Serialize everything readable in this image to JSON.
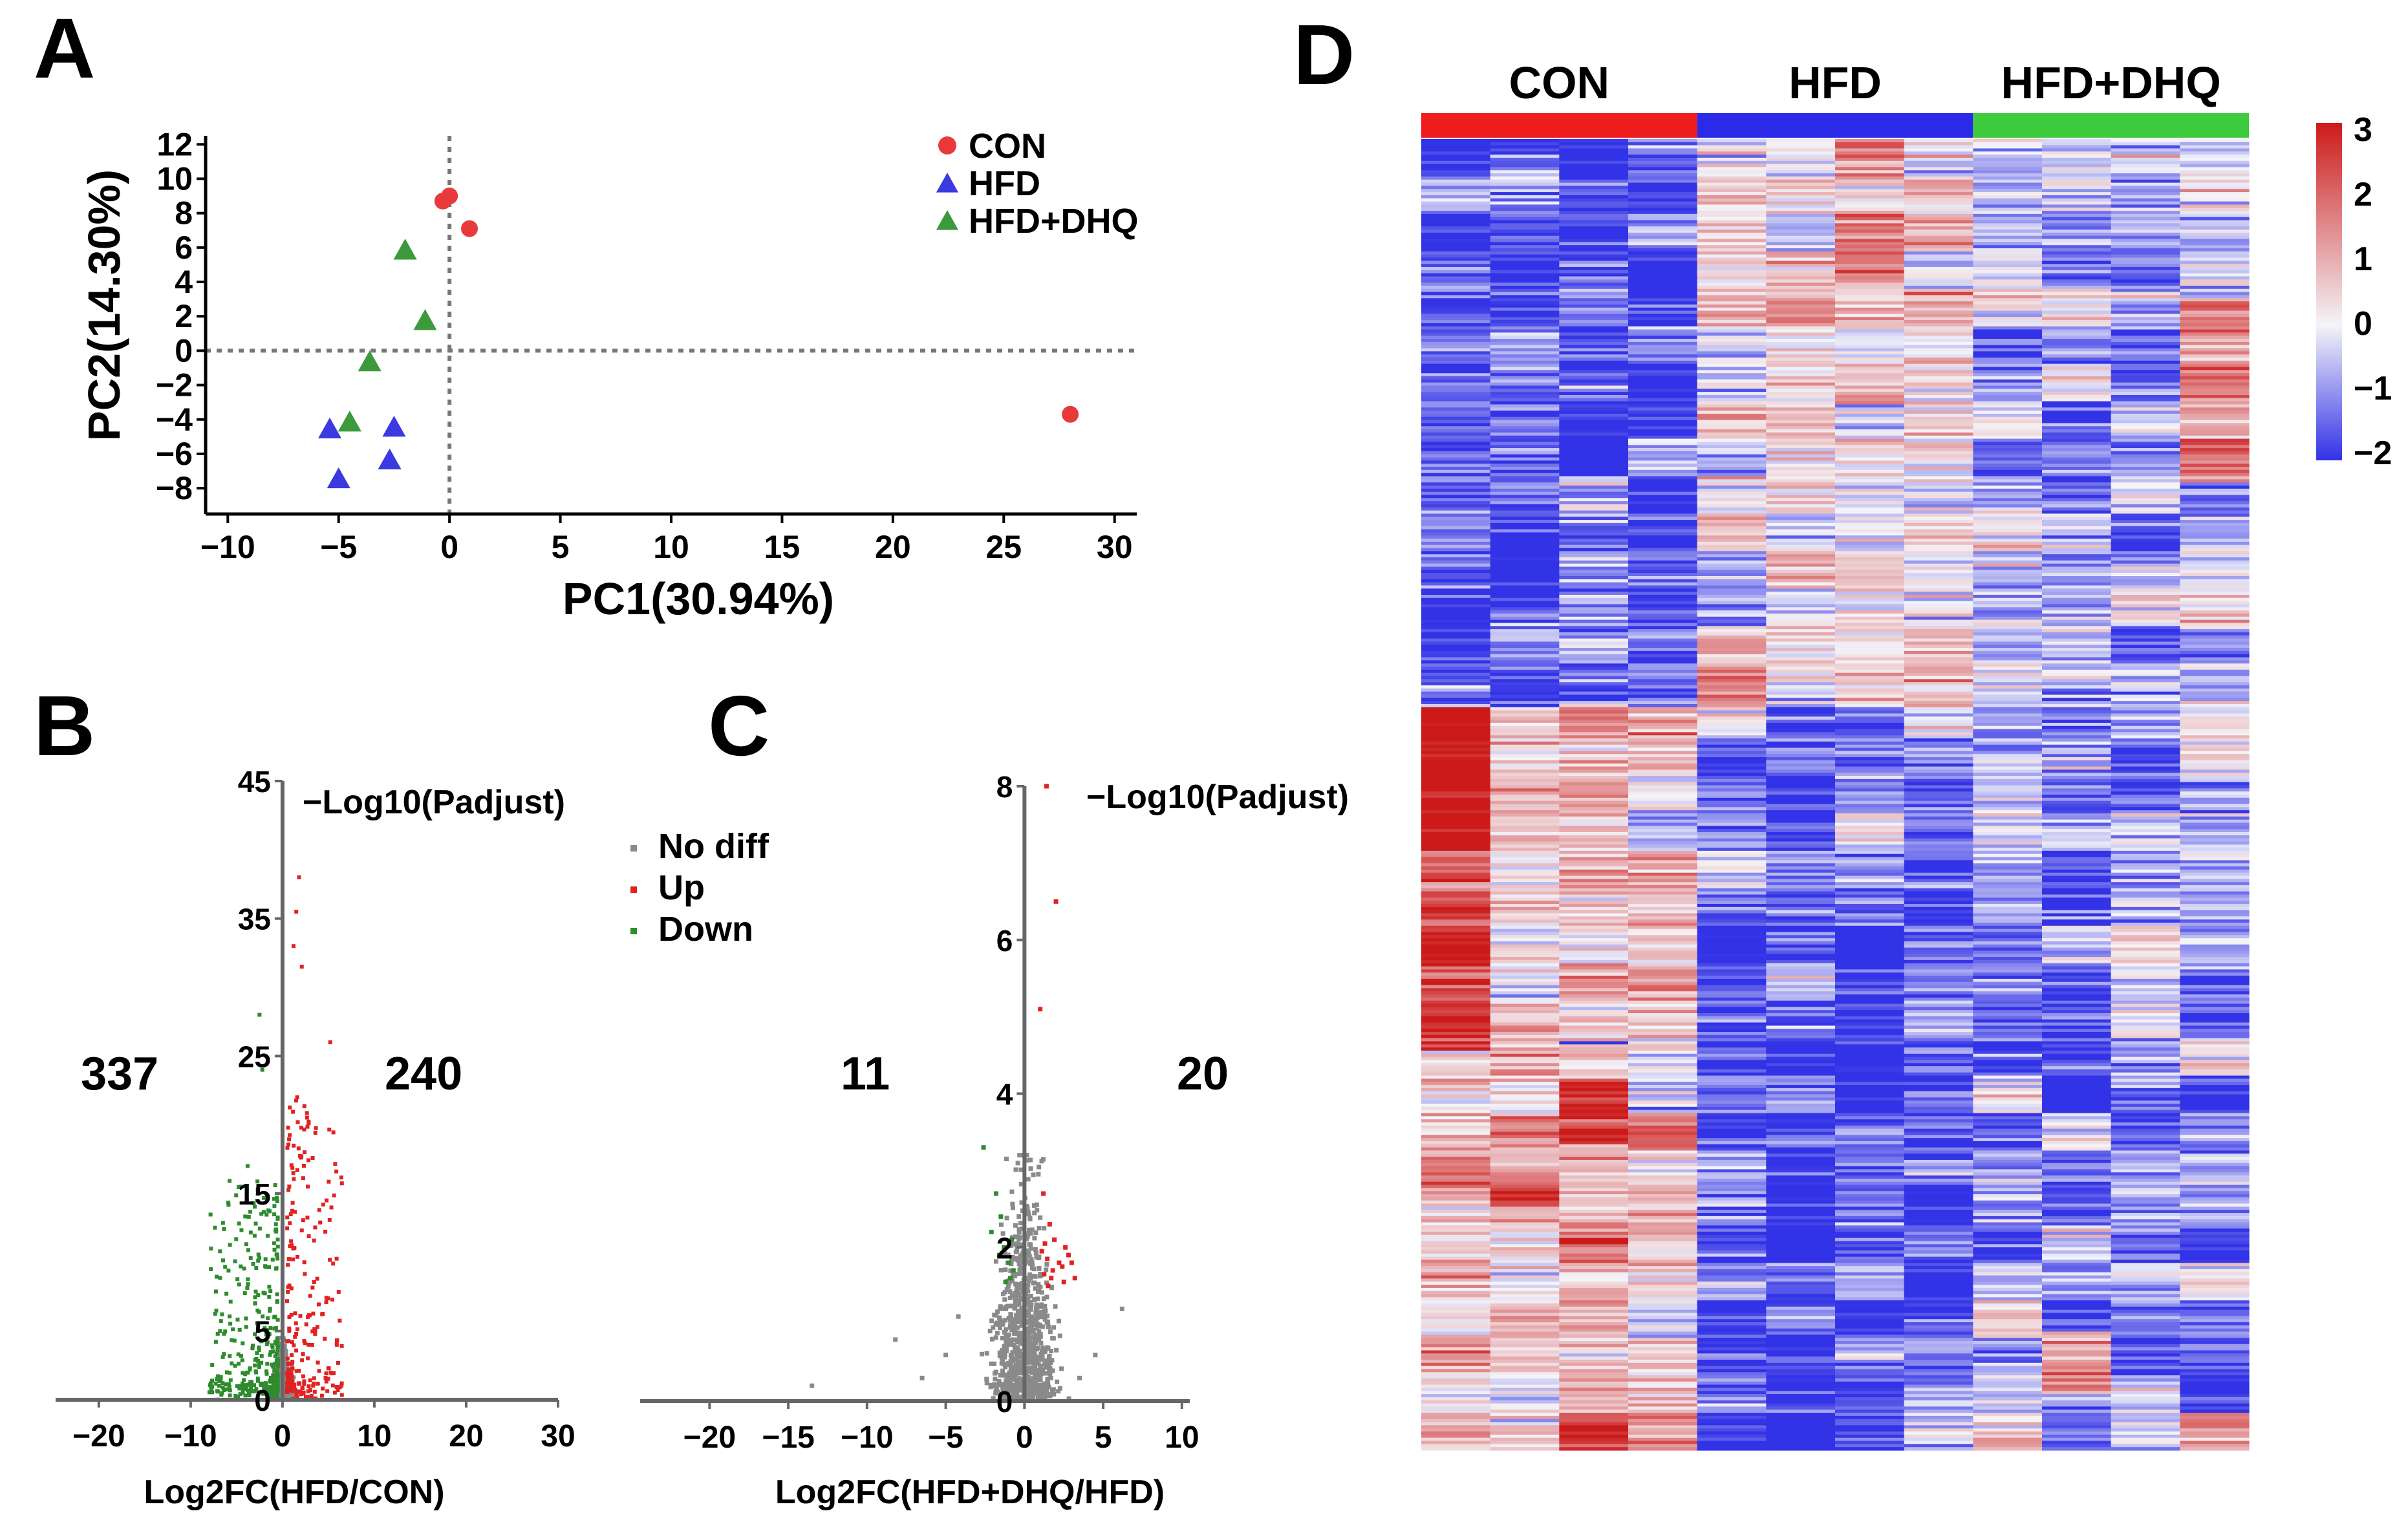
{
  "panels": {
    "A": "A",
    "B": "B",
    "C": "C",
    "D": "D"
  },
  "chart_data": [
    {
      "panel": "A",
      "type": "scatter",
      "xlabel": "PC1(30.94%)",
      "ylabel": "PC2(14.30%)",
      "xlim": [
        -11,
        31
      ],
      "ylim": [
        -9.5,
        12.5
      ],
      "xticks": [
        -10,
        -5,
        0,
        5,
        10,
        15,
        20,
        25,
        30
      ],
      "yticks": [
        -8,
        -6,
        -4,
        -2,
        0,
        2,
        4,
        6,
        8,
        10,
        12
      ],
      "legend_position": "top-right",
      "series": [
        {
          "name": "CON",
          "marker": "circle",
          "color": "#e8393b",
          "points": [
            [
              -0.3,
              8.7
            ],
            [
              0.0,
              9.0
            ],
            [
              0.9,
              7.1
            ],
            [
              28.0,
              -3.7
            ]
          ]
        },
        {
          "name": "HFD",
          "marker": "triangle",
          "color": "#3a3ae0",
          "points": [
            [
              -5.4,
              -4.6
            ],
            [
              -5.0,
              -7.5
            ],
            [
              -2.5,
              -4.5
            ],
            [
              -2.7,
              -6.4
            ]
          ]
        },
        {
          "name": "HFD+DHQ",
          "marker": "triangle",
          "color": "#3c9a3c",
          "points": [
            [
              -2.0,
              5.8
            ],
            [
              -1.1,
              1.7
            ],
            [
              -3.6,
              -0.7
            ],
            [
              -4.5,
              -4.2
            ]
          ]
        }
      ]
    },
    {
      "panel": "B",
      "type": "scatter",
      "xlabel": "Log2FC(HFD/CON)",
      "ylabel": "−Log10(Padjust)",
      "xlim": [
        -24,
        30
      ],
      "ylim": [
        0,
        45
      ],
      "xticks": [
        -20,
        -10,
        0,
        10,
        20,
        30
      ],
      "yticks": [
        0,
        5,
        15,
        25,
        35,
        45
      ],
      "legend_position": "top-right",
      "legend": [
        "No diff",
        "Up",
        "Down"
      ],
      "down_count": "337",
      "up_count": "240",
      "series": [
        {
          "name": "No diff",
          "color": "#8a8a8a",
          "n": 700,
          "x_sd": 0.45,
          "y_max": 4.5
        },
        {
          "name": "Up",
          "color": "#e02222",
          "n": 240,
          "x_range": [
            0.5,
            6.5
          ],
          "y_max": 38,
          "highlights": [
            [
              1.8,
              38
            ],
            [
              1.5,
              35.5
            ],
            [
              1.2,
              33
            ],
            [
              2.1,
              31.5
            ],
            [
              5.2,
              26
            ],
            [
              1.6,
              22
            ],
            [
              4.8,
              14.5
            ],
            [
              2.4,
              18
            ]
          ]
        },
        {
          "name": "Down",
          "color": "#2e8b2e",
          "n": 337,
          "x_range": [
            -8,
            -0.5
          ],
          "y_max": 28,
          "highlights": [
            [
              -2.5,
              28
            ],
            [
              -3.8,
              17
            ],
            [
              -2.2,
              24
            ],
            [
              -7.8,
              9.5
            ],
            [
              -6.8,
              5
            ],
            [
              -4.5,
              15.5
            ]
          ]
        }
      ]
    },
    {
      "panel": "C",
      "type": "scatter",
      "xlabel": "Log2FC(HFD+DHQ/HFD)",
      "ylabel": "−Log10(Padjust)",
      "xlim": [
        -24,
        10.5
      ],
      "ylim": [
        0,
        8
      ],
      "xticks": [
        -20,
        -15,
        -10,
        -5,
        0,
        5,
        10
      ],
      "yticks": [
        0,
        2,
        4,
        6,
        8
      ],
      "down_count": "11",
      "up_count": "20",
      "series": [
        {
          "name": "No diff",
          "color": "#8a8a8a",
          "n": 900,
          "x_sd": 0.9,
          "y_max": 3.2,
          "outliers": [
            [
              -13.5,
              0.2
            ],
            [
              -8.2,
              0.8
            ],
            [
              -5.0,
              0.6
            ],
            [
              -4.2,
              1.1
            ],
            [
              4.5,
              0.6
            ],
            [
              6.2,
              1.2
            ],
            [
              -6.5,
              0.3
            ],
            [
              3.5,
              0.3
            ]
          ]
        },
        {
          "name": "Up",
          "color": "#e02222",
          "n": 20,
          "points": [
            [
              1.4,
              8.0
            ],
            [
              2.0,
              6.5
            ],
            [
              1.0,
              5.1
            ],
            [
              1.2,
              2.7
            ],
            [
              1.6,
              2.3
            ],
            [
              2.2,
              1.8
            ],
            [
              3.2,
              1.6
            ],
            [
              1.5,
              1.5
            ],
            [
              2.8,
              1.9
            ],
            [
              1.1,
              1.95
            ],
            [
              2.5,
              1.55
            ],
            [
              1.8,
              1.7
            ],
            [
              1.3,
              2.05
            ],
            [
              2.4,
              1.75
            ],
            [
              1.7,
              1.6
            ],
            [
              3.0,
              1.8
            ],
            [
              1.9,
              2.1
            ],
            [
              1.25,
              1.65
            ],
            [
              2.6,
              2.0
            ],
            [
              1.45,
              1.85
            ]
          ]
        },
        {
          "name": "Down",
          "color": "#2e8b2e",
          "n": 11,
          "points": [
            [
              -2.6,
              3.3
            ],
            [
              -1.8,
              2.7
            ],
            [
              -1.5,
              2.4
            ],
            [
              -2.1,
              2.2
            ],
            [
              -1.3,
              2.0
            ],
            [
              -1.0,
              1.8
            ],
            [
              -0.9,
              1.6
            ],
            [
              -1.2,
              1.55
            ],
            [
              -0.8,
              2.1
            ],
            [
              -1.6,
              1.9
            ],
            [
              -0.7,
              1.7
            ]
          ]
        }
      ]
    },
    {
      "panel": "D",
      "type": "heatmap",
      "groups": [
        {
          "label": "CON",
          "color": "#ee1c1c",
          "columns": 4
        },
        {
          "label": "HFD",
          "color": "#2a2ae8",
          "columns": 4
        },
        {
          "label": "HFD+DHQ",
          "color": "#3ecc3e",
          "columns": 4
        }
      ],
      "rows": 420,
      "colorbar": {
        "min": -2,
        "max": 3,
        "ticks": [
          "3",
          "2",
          "1",
          "0",
          "−1",
          "−2"
        ],
        "colors": [
          "#3232e6",
          "#f4f4f8",
          "#cc1a1a"
        ]
      }
    }
  ]
}
